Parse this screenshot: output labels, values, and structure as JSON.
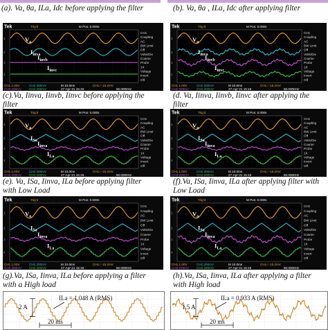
{
  "captions": {
    "a": "(a).  Va,  θa,  ILa,  Idc before applying the filter",
    "b": "(b).  Va,  θa ,  ILa,  Idc after applying filter",
    "c": "(c).Va,  Iinva,  Iinvb,  Iinvc before applying the",
    "c2": "filter",
    "d": "(d.  Va,  Iinva,  Iinvb,  Iinvc  after applying the",
    "d2": "filter",
    "e": "(e).  Va,  ISa,  Iinva,  ILa  before  applying  filter",
    "e2": "with Low Load",
    "f": "(f).Va,  ISa,  Iinva,  ILa  after applying  filter with",
    "f2": "Low Load",
    "g": "(g).Va,  ISa,  Iinva,  ILa  before applying a filter",
    "g2": "with a High load",
    "h": "(h).Va,  ISa,  Iinva,  ILa  after applying a filter",
    "h2": "with High load"
  },
  "scope_common": {
    "brand": "Tek",
    "trig": "Trig'd",
    "mpos": "M Pos: 0.000s",
    "menu": [
      "CH1",
      "Coupling",
      "AC",
      "BW Limit",
      "Off",
      "Volts/Div",
      "Coarse",
      "Probe",
      "1X",
      "Voltage",
      "Invert",
      "Off"
    ],
    "bottom_ch1": "CH1 1.00V",
    "bottom_ch2": "CH2 200mV",
    "bottom_ch3": "CH3 200mV",
    "bottom_ch4": "CH4 200mV",
    "bottom_m": "M 10.0ms",
    "bottom_date": "27-Apr-21 15:19",
    "bottom_freq": "50.0000Hz",
    "bottom_trig": "CH1 ∕ -15.2mV"
  },
  "scopes": [
    {
      "id": "c",
      "labels": [
        "Va",
        "Iinva",
        "Iinvb",
        "Iinvc"
      ]
    },
    {
      "id": "d",
      "labels": [
        "Va",
        "Iinva",
        "Iinvb",
        "Iinvc"
      ]
    },
    {
      "id": "e",
      "labels": [
        "Va",
        "ISa",
        "Iinva",
        "ILa"
      ]
    },
    {
      "id": "f",
      "labels": [
        "Va",
        "ISa",
        "Iinva",
        "ILa"
      ]
    },
    {
      "id": "g",
      "labels": [
        "Va",
        "ISa",
        "Iinva",
        "ILa"
      ]
    },
    {
      "id": "h",
      "labels": [
        "Va",
        "ISa",
        "Iinva",
        "ILa"
      ]
    }
  ],
  "bottom_plots": {
    "left": {
      "amp": "2 A",
      "rms": "ILa = 1.048 A (RMS)",
      "period": "20 ms"
    },
    "right": {
      "amp": "1.5 A",
      "rms": "ILa = 0.933 A (RMS)",
      "period": "20 ms"
    }
  },
  "colors": {
    "ch1": "#e8a33a",
    "ch2": "#37b8c9",
    "ch3": "#c04fd0",
    "ch4": "#3fbf4a",
    "scope_bg": "#0a0a0a",
    "grid": "#3a3a3a"
  }
}
